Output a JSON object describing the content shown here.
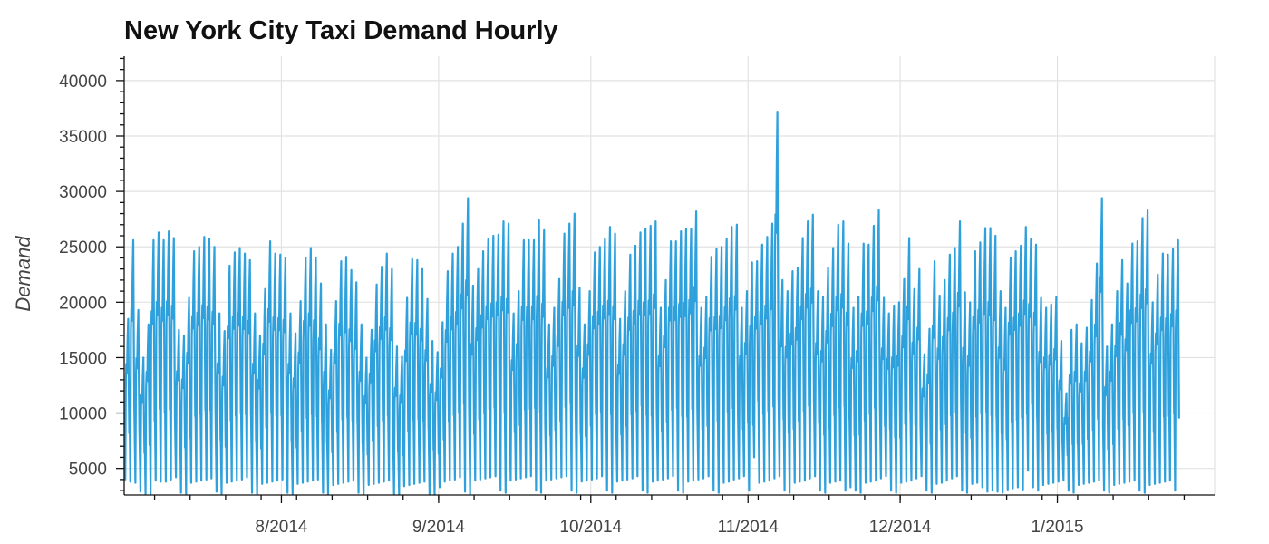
{
  "chart_data": {
    "type": "line",
    "title": "New York City Taxi Demand Hourly",
    "xlabel": "",
    "ylabel": "Demand",
    "x_range": [
      "2014-07-01",
      "2015-01-31"
    ],
    "ylim": [
      2600,
      42200
    ],
    "grid": true,
    "legend": "none",
    "line_color": "#2ea0dc",
    "x_ticks": [
      {
        "date": "2014-08-01",
        "label": "8/2014"
      },
      {
        "date": "2014-09-01",
        "label": "9/2014"
      },
      {
        "date": "2014-10-01",
        "label": "10/2014"
      },
      {
        "date": "2014-11-01",
        "label": "11/2014"
      },
      {
        "date": "2014-12-01",
        "label": "12/2014"
      },
      {
        "date": "2015-01-01",
        "label": "1/2015"
      }
    ],
    "y_ticks": [
      5000,
      10000,
      15000,
      20000,
      25000,
      30000,
      35000,
      40000
    ],
    "y_tick_labels": [
      "5000",
      "10000",
      "15000",
      "20000",
      "25000",
      "30000",
      "35000",
      "40000"
    ],
    "series": [
      {
        "resolution": "hourly (daily peak and trough shown)",
        "x": [
          "2014-07-01",
          "2014-07-02",
          "2014-07-03",
          "2014-07-04",
          "2014-07-05",
          "2014-07-06",
          "2014-07-07",
          "2014-07-08",
          "2014-07-09",
          "2014-07-10",
          "2014-07-11",
          "2014-07-12",
          "2014-07-13",
          "2014-07-14",
          "2014-07-15",
          "2014-07-16",
          "2014-07-17",
          "2014-07-18",
          "2014-07-19",
          "2014-07-20",
          "2014-07-21",
          "2014-07-22",
          "2014-07-23",
          "2014-07-24",
          "2014-07-25",
          "2014-07-26",
          "2014-07-27",
          "2014-07-28",
          "2014-07-29",
          "2014-07-30",
          "2014-07-31",
          "2014-08-01",
          "2014-08-02",
          "2014-08-03",
          "2014-08-04",
          "2014-08-05",
          "2014-08-06",
          "2014-08-07",
          "2014-08-08",
          "2014-08-09",
          "2014-08-10",
          "2014-08-11",
          "2014-08-12",
          "2014-08-13",
          "2014-08-14",
          "2014-08-15",
          "2014-08-16",
          "2014-08-17",
          "2014-08-18",
          "2014-08-19",
          "2014-08-20",
          "2014-08-21",
          "2014-08-22",
          "2014-08-23",
          "2014-08-24",
          "2014-08-25",
          "2014-08-26",
          "2014-08-27",
          "2014-08-28",
          "2014-08-29",
          "2014-08-30",
          "2014-08-31",
          "2014-09-01",
          "2014-09-02",
          "2014-09-03",
          "2014-09-04",
          "2014-09-05",
          "2014-09-06",
          "2014-09-07",
          "2014-09-08",
          "2014-09-09",
          "2014-09-10",
          "2014-09-11",
          "2014-09-12",
          "2014-09-13",
          "2014-09-14",
          "2014-09-15",
          "2014-09-16",
          "2014-09-17",
          "2014-09-18",
          "2014-09-19",
          "2014-09-20",
          "2014-09-21",
          "2014-09-22",
          "2014-09-23",
          "2014-09-24",
          "2014-09-25",
          "2014-09-26",
          "2014-09-27",
          "2014-09-28",
          "2014-09-29",
          "2014-09-30",
          "2014-10-01",
          "2014-10-02",
          "2014-10-03",
          "2014-10-04",
          "2014-10-05",
          "2014-10-06",
          "2014-10-07",
          "2014-10-08",
          "2014-10-09",
          "2014-10-10",
          "2014-10-11",
          "2014-10-12",
          "2014-10-13",
          "2014-10-14",
          "2014-10-15",
          "2014-10-16",
          "2014-10-17",
          "2014-10-18",
          "2014-10-19",
          "2014-10-20",
          "2014-10-21",
          "2014-10-22",
          "2014-10-23",
          "2014-10-24",
          "2014-10-25",
          "2014-10-26",
          "2014-10-27",
          "2014-10-28",
          "2014-10-29",
          "2014-10-30",
          "2014-10-31",
          "2014-11-01",
          "2014-11-02",
          "2014-11-03",
          "2014-11-04",
          "2014-11-05",
          "2014-11-06",
          "2014-11-07",
          "2014-11-08",
          "2014-11-09",
          "2014-11-10",
          "2014-11-11",
          "2014-11-12",
          "2014-11-13",
          "2014-11-14",
          "2014-11-15",
          "2014-11-16",
          "2014-11-17",
          "2014-11-18",
          "2014-11-19",
          "2014-11-20",
          "2014-11-21",
          "2014-11-22",
          "2014-11-23",
          "2014-11-24",
          "2014-11-25",
          "2014-11-26",
          "2014-11-27",
          "2014-11-28",
          "2014-11-29",
          "2014-11-30",
          "2014-12-01",
          "2014-12-02",
          "2014-12-03",
          "2014-12-04",
          "2014-12-05",
          "2014-12-06",
          "2014-12-07",
          "2014-12-08",
          "2014-12-09",
          "2014-12-10",
          "2014-12-11",
          "2014-12-12",
          "2014-12-13",
          "2014-12-14",
          "2014-12-15",
          "2014-12-16",
          "2014-12-17",
          "2014-12-18",
          "2014-12-19",
          "2014-12-20",
          "2014-12-21",
          "2014-12-22",
          "2014-12-23",
          "2014-12-24",
          "2014-12-25",
          "2014-12-26",
          "2014-12-27",
          "2014-12-28",
          "2014-12-29",
          "2014-12-30",
          "2014-12-31",
          "2015-01-01",
          "2015-01-02",
          "2015-01-03",
          "2015-01-04",
          "2015-01-05",
          "2015-01-06",
          "2015-01-07",
          "2015-01-08",
          "2015-01-09",
          "2015-01-10",
          "2015-01-11",
          "2015-01-12",
          "2015-01-13",
          "2015-01-14",
          "2015-01-15",
          "2015-01-16",
          "2015-01-17",
          "2015-01-18",
          "2015-01-19",
          "2015-01-20",
          "2015-01-21",
          "2015-01-22",
          "2015-01-23",
          "2015-01-24",
          "2015-01-25",
          "2015-01-26",
          "2015-01-27",
          "2015-01-28",
          "2015-01-29",
          "2015-01-30",
          "2015-01-31"
        ],
        "daily_peak": [
          18500,
          25600,
          19300,
          15000,
          18000,
          25600,
          26300,
          25600,
          26400,
          25800,
          17500,
          17000,
          20400,
          24600,
          25000,
          25900,
          25700,
          25000,
          19000,
          17400,
          23300,
          24500,
          24900,
          24400,
          23800,
          19000,
          17000,
          21200,
          25500,
          24400,
          24300,
          24000,
          19000,
          17200,
          20100,
          24000,
          24900,
          24000,
          21700,
          18000,
          15700,
          20100,
          23700,
          24100,
          22900,
          21800,
          18000,
          15000,
          17500,
          21600,
          23200,
          24400,
          23000,
          16000,
          15100,
          20400,
          23900,
          23800,
          23000,
          20300,
          16500,
          15500,
          18200,
          22800,
          24400,
          25000,
          27100,
          29400,
          21500,
          23000,
          24600,
          25700,
          26000,
          26100,
          27300,
          27100,
          19000,
          21000,
          25600,
          25600,
          25600,
          27400,
          26500,
          18000,
          19500,
          22100,
          26200,
          27100,
          28000,
          21300,
          18000,
          21000,
          24500,
          25000,
          25700,
          26800,
          26200,
          18500,
          21000,
          24300,
          25100,
          26300,
          26600,
          26900,
          27300,
          19500,
          22000,
          25500,
          25500,
          26400,
          26600,
          26600,
          28200,
          19500,
          20500,
          24100,
          24800,
          25000,
          25700,
          26800,
          27000,
          19500,
          21000,
          23600,
          23700,
          25200,
          25900,
          27100,
          37200,
          22000,
          21000,
          22800,
          23100,
          25800,
          27300,
          27900,
          21000,
          20500,
          23100,
          24900,
          27000,
          27300,
          25300,
          19500,
          20500,
          25300,
          25200,
          26900,
          28300,
          20400,
          19000,
          19700,
          20000,
          22100,
          25800,
          21200,
          23000,
          15300,
          17600,
          23700,
          20600,
          22000,
          24300,
          24900,
          27300,
          20900,
          20000,
          24600,
          25400,
          26700,
          26700,
          26000,
          21000,
          19500,
          24000,
          24600,
          25100,
          26800,
          25700,
          25200,
          20400,
          19500,
          19800,
          20500,
          16500,
          11800,
          17500,
          18000,
          16300,
          17700,
          20200,
          23500,
          29400,
          16000,
          18000,
          21000,
          23800,
          21700,
          25300,
          25500,
          27600,
          28300,
          20000,
          22500,
          24400,
          24300,
          24800,
          25600,
          27600,
          22000,
          22000,
          25300,
          25500,
          26500,
          25800,
          19900,
          18700
        ],
        "daily_trough": [
          4000,
          3800,
          3700,
          2900,
          2700,
          2700,
          3900,
          3800,
          3800,
          4000,
          4200,
          2800,
          2700,
          3700,
          3800,
          3900,
          4000,
          4100,
          2900,
          2700,
          3700,
          3800,
          3900,
          4000,
          4200,
          2800,
          2700,
          3600,
          3700,
          3800,
          3900,
          4000,
          2800,
          2700,
          3600,
          3700,
          3800,
          3900,
          4000,
          2800,
          2700,
          3500,
          3600,
          3700,
          3800,
          3900,
          2800,
          2700,
          3500,
          3600,
          3700,
          3800,
          3900,
          2700,
          2600,
          3400,
          3500,
          3600,
          3700,
          3800,
          2700,
          2600,
          3300,
          3800,
          3900,
          4000,
          4200,
          2900,
          2700,
          3900,
          4000,
          4100,
          4200,
          4300,
          3000,
          2800,
          3900,
          4000,
          4100,
          4200,
          4300,
          3000,
          2800,
          3900,
          4000,
          4100,
          4200,
          4300,
          3000,
          2800,
          3800,
          3900,
          4000,
          4100,
          4300,
          3000,
          2800,
          3800,
          3900,
          4000,
          4100,
          4300,
          3000,
          2800,
          3800,
          3900,
          4000,
          4100,
          4300,
          3000,
          2800,
          3800,
          3900,
          4000,
          4100,
          4300,
          3000,
          2800,
          3700,
          3800,
          4000,
          4100,
          4300,
          3000,
          6000,
          3700,
          3800,
          3900,
          4100,
          4300,
          3000,
          2800,
          3700,
          3800,
          3900,
          4100,
          4300,
          3000,
          2800,
          3700,
          3800,
          3900,
          3000,
          3300,
          3000,
          2800,
          3700,
          3800,
          3900,
          4100,
          4300,
          3000,
          2800,
          3700,
          3800,
          3900,
          4100,
          4300,
          3000,
          2800,
          3600,
          3700,
          3900,
          4100,
          4300,
          3000,
          2800,
          3600,
          3700,
          3300,
          2900,
          3000,
          2900,
          2800,
          3100,
          3200,
          3300,
          3100,
          4800,
          3300,
          3000,
          3500,
          3600,
          3700,
          3800,
          3900,
          3000,
          2800,
          3500,
          3600,
          3700,
          3800,
          3900,
          3000,
          2800,
          3500,
          3600,
          3700,
          3800,
          3900,
          3000,
          2800,
          3500,
          3600,
          3700,
          3800,
          3900,
          3000
        ]
      }
    ]
  }
}
